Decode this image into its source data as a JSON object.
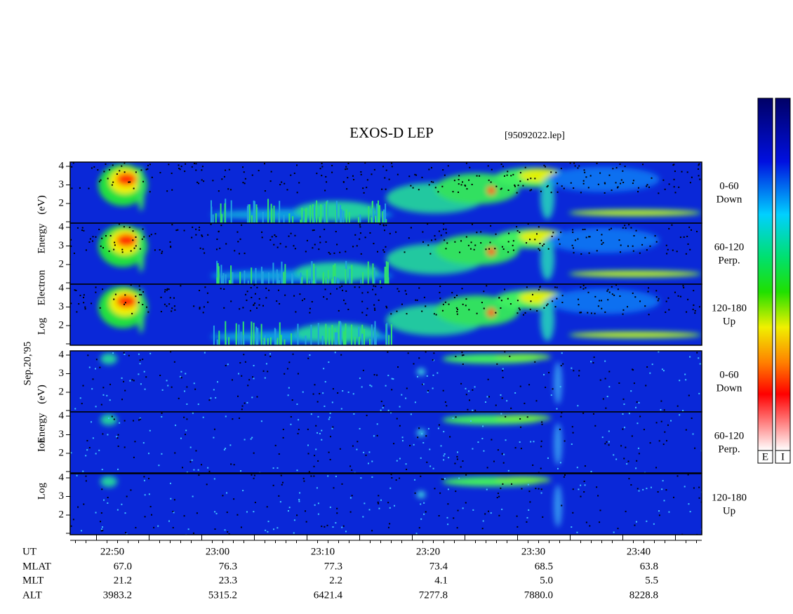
{
  "header": {
    "title": "EXOS-D LEP",
    "file": "[95092022.lep]"
  },
  "left_labels": {
    "date": "Sep.20,'95",
    "electron": [
      "Log",
      "Electron",
      "Energy",
      "(eV)"
    ],
    "ion": [
      "Log",
      "Ion",
      "Energy",
      "(eV)"
    ]
  },
  "panels": [
    {
      "range": "0-60",
      "direction": "Down"
    },
    {
      "range": "60-120",
      "direction": "Perp."
    },
    {
      "range": "120-180",
      "direction": "Up"
    },
    {
      "range": "0-60",
      "direction": "Down"
    },
    {
      "range": "60-120",
      "direction": "Perp."
    },
    {
      "range": "120-180",
      "direction": "Up"
    }
  ],
  "yticks": [
    2,
    3,
    4
  ],
  "x_rows": [
    {
      "name": "UT",
      "values": [
        "22:50",
        "23:00",
        "23:10",
        "23:20",
        "23:30",
        "23:40"
      ]
    },
    {
      "name": "MLAT",
      "values": [
        "67.0",
        "76.3",
        "77.3",
        "73.4",
        "68.5",
        "63.8"
      ]
    },
    {
      "name": "MLT",
      "values": [
        "21.2",
        "23.3",
        "2.2",
        "4.1",
        "5.0",
        "5.5"
      ]
    },
    {
      "name": "ALT",
      "values": [
        "3983.2",
        "5315.2",
        "6421.4",
        "7277.8",
        "7880.0",
        "8228.8"
      ]
    }
  ],
  "colorbars": [
    "E",
    "I"
  ]
}
